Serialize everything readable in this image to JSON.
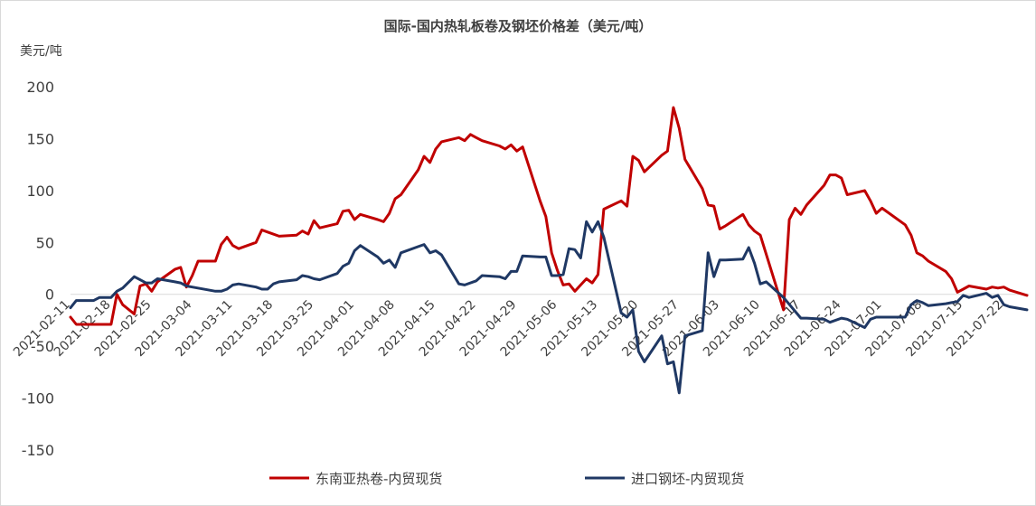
{
  "chart_data": {
    "type": "line",
    "title": "国际-国内热轧板卷及钢坯价格差（美元/吨）",
    "ylabel": "美元/吨",
    "xlabel": "",
    "ylim": [
      -150,
      200
    ],
    "yticks": [
      -150,
      -100,
      -50,
      0,
      50,
      100,
      150,
      200
    ],
    "x_tick_labels": [
      "2021-02-11",
      "2021-02-18",
      "2021-02-25",
      "2021-03-04",
      "2021-03-11",
      "2021-03-18",
      "2021-03-25",
      "2021-04-01",
      "2021-04-08",
      "2021-04-15",
      "2021-04-22",
      "2021-04-29",
      "2021-05-06",
      "2021-05-13",
      "2021-05-20",
      "2021-05-27",
      "2021-06-03",
      "2021-06-10",
      "2021-06-17",
      "2021-06-24",
      "2021-07-01",
      "2021-07-08",
      "2021-07-15",
      "2021-07-22"
    ],
    "x_range": [
      "2021-02-11",
      "2021-07-26"
    ],
    "grid": false,
    "legend_position": "bottom",
    "series": [
      {
        "name": "东南亚热卷-内贸现货",
        "color": "#c00000",
        "points": [
          [
            "2021-02-11",
            -22
          ],
          [
            "2021-02-12",
            -29
          ],
          [
            "2021-02-17",
            -29
          ],
          [
            "2021-02-18",
            -29
          ],
          [
            "2021-02-19",
            0
          ],
          [
            "2021-02-20",
            -10
          ],
          [
            "2021-02-22",
            -19
          ],
          [
            "2021-02-23",
            8
          ],
          [
            "2021-02-24",
            10
          ],
          [
            "2021-02-25",
            3
          ],
          [
            "2021-02-26",
            12
          ],
          [
            "2021-03-01",
            24
          ],
          [
            "2021-03-02",
            26
          ],
          [
            "2021-03-03",
            7
          ],
          [
            "2021-03-04",
            18
          ],
          [
            "2021-03-05",
            32
          ],
          [
            "2021-03-08",
            32
          ],
          [
            "2021-03-09",
            48
          ],
          [
            "2021-03-10",
            55
          ],
          [
            "2021-03-11",
            47
          ],
          [
            "2021-03-12",
            44
          ],
          [
            "2021-03-15",
            50
          ],
          [
            "2021-03-16",
            62
          ],
          [
            "2021-03-17",
            60
          ],
          [
            "2021-03-19",
            56
          ],
          [
            "2021-03-22",
            57
          ],
          [
            "2021-03-23",
            61
          ],
          [
            "2021-03-24",
            58
          ],
          [
            "2021-03-25",
            71
          ],
          [
            "2021-03-26",
            64
          ],
          [
            "2021-03-29",
            68
          ],
          [
            "2021-03-30",
            80
          ],
          [
            "2021-03-31",
            81
          ],
          [
            "2021-04-01",
            72
          ],
          [
            "2021-04-02",
            77
          ],
          [
            "2021-04-05",
            72
          ],
          [
            "2021-04-06",
            70
          ],
          [
            "2021-04-07",
            78
          ],
          [
            "2021-04-08",
            92
          ],
          [
            "2021-04-09",
            96
          ],
          [
            "2021-04-12",
            120
          ],
          [
            "2021-04-13",
            133
          ],
          [
            "2021-04-14",
            127
          ],
          [
            "2021-04-15",
            140
          ],
          [
            "2021-04-16",
            147
          ],
          [
            "2021-04-19",
            151
          ],
          [
            "2021-04-20",
            148
          ],
          [
            "2021-04-21",
            154
          ],
          [
            "2021-04-22",
            151
          ],
          [
            "2021-04-23",
            148
          ],
          [
            "2021-04-26",
            143
          ],
          [
            "2021-04-27",
            140
          ],
          [
            "2021-04-28",
            144
          ],
          [
            "2021-04-29",
            138
          ],
          [
            "2021-04-30",
            142
          ],
          [
            "2021-05-03",
            90
          ],
          [
            "2021-05-04",
            75
          ],
          [
            "2021-05-05",
            40
          ],
          [
            "2021-05-06",
            23
          ],
          [
            "2021-05-07",
            9
          ],
          [
            "2021-05-08",
            10
          ],
          [
            "2021-05-09",
            3
          ],
          [
            "2021-05-10",
            9
          ],
          [
            "2021-05-11",
            15
          ],
          [
            "2021-05-12",
            11
          ],
          [
            "2021-05-13",
            19
          ],
          [
            "2021-05-14",
            82
          ],
          [
            "2021-05-17",
            90
          ],
          [
            "2021-05-18",
            85
          ],
          [
            "2021-05-19",
            133
          ],
          [
            "2021-05-20",
            129
          ],
          [
            "2021-05-21",
            118
          ],
          [
            "2021-05-24",
            134
          ],
          [
            "2021-05-25",
            138
          ],
          [
            "2021-05-26",
            180
          ],
          [
            "2021-05-27",
            160
          ],
          [
            "2021-05-28",
            130
          ],
          [
            "2021-05-31",
            102
          ],
          [
            "2021-06-01",
            86
          ],
          [
            "2021-06-02",
            85
          ],
          [
            "2021-06-03",
            63
          ],
          [
            "2021-06-04",
            66
          ],
          [
            "2021-06-07",
            77
          ],
          [
            "2021-06-08",
            67
          ],
          [
            "2021-06-09",
            61
          ],
          [
            "2021-06-10",
            57
          ],
          [
            "2021-06-14",
            -15
          ],
          [
            "2021-06-15",
            72
          ],
          [
            "2021-06-16",
            83
          ],
          [
            "2021-06-17",
            77
          ],
          [
            "2021-06-18",
            86
          ],
          [
            "2021-06-21",
            105
          ],
          [
            "2021-06-22",
            115
          ],
          [
            "2021-06-23",
            115
          ],
          [
            "2021-06-24",
            112
          ],
          [
            "2021-06-25",
            96
          ],
          [
            "2021-06-28",
            100
          ],
          [
            "2021-06-29",
            90
          ],
          [
            "2021-06-30",
            78
          ],
          [
            "2021-07-01",
            83
          ],
          [
            "2021-07-05",
            67
          ],
          [
            "2021-07-06",
            57
          ],
          [
            "2021-07-07",
            40
          ],
          [
            "2021-07-08",
            37
          ],
          [
            "2021-07-09",
            32
          ],
          [
            "2021-07-12",
            22
          ],
          [
            "2021-07-13",
            15
          ],
          [
            "2021-07-14",
            2
          ],
          [
            "2021-07-15",
            5
          ],
          [
            "2021-07-16",
            8
          ],
          [
            "2021-07-19",
            5
          ],
          [
            "2021-07-20",
            7
          ],
          [
            "2021-07-21",
            6
          ],
          [
            "2021-07-22",
            7
          ],
          [
            "2021-07-23",
            4
          ],
          [
            "2021-07-26",
            -1
          ]
        ]
      },
      {
        "name": "进口钢坯-内贸现货",
        "color": "#1f3864",
        "points": [
          [
            "2021-02-11",
            -13
          ],
          [
            "2021-02-12",
            -6
          ],
          [
            "2021-02-15",
            -6
          ],
          [
            "2021-02-16",
            -3
          ],
          [
            "2021-02-18",
            -3
          ],
          [
            "2021-02-19",
            3
          ],
          [
            "2021-02-20",
            6
          ],
          [
            "2021-02-22",
            17
          ],
          [
            "2021-02-23",
            14
          ],
          [
            "2021-02-24",
            11
          ],
          [
            "2021-02-25",
            11
          ],
          [
            "2021-02-26",
            15
          ],
          [
            "2021-03-01",
            12
          ],
          [
            "2021-03-02",
            11
          ],
          [
            "2021-03-03",
            8
          ],
          [
            "2021-03-04",
            7
          ],
          [
            "2021-03-08",
            3
          ],
          [
            "2021-03-09",
            3
          ],
          [
            "2021-03-10",
            5
          ],
          [
            "2021-03-11",
            9
          ],
          [
            "2021-03-12",
            10
          ],
          [
            "2021-03-15",
            7
          ],
          [
            "2021-03-16",
            5
          ],
          [
            "2021-03-17",
            5
          ],
          [
            "2021-03-18",
            10
          ],
          [
            "2021-03-19",
            12
          ],
          [
            "2021-03-22",
            14
          ],
          [
            "2021-03-23",
            18
          ],
          [
            "2021-03-24",
            17
          ],
          [
            "2021-03-25",
            15
          ],
          [
            "2021-03-26",
            14
          ],
          [
            "2021-03-29",
            20
          ],
          [
            "2021-03-30",
            27
          ],
          [
            "2021-03-31",
            30
          ],
          [
            "2021-04-01",
            42
          ],
          [
            "2021-04-02",
            47
          ],
          [
            "2021-04-05",
            36
          ],
          [
            "2021-04-06",
            30
          ],
          [
            "2021-04-07",
            33
          ],
          [
            "2021-04-08",
            26
          ],
          [
            "2021-04-09",
            40
          ],
          [
            "2021-04-12",
            46
          ],
          [
            "2021-04-13",
            48
          ],
          [
            "2021-04-14",
            40
          ],
          [
            "2021-04-15",
            42
          ],
          [
            "2021-04-16",
            38
          ],
          [
            "2021-04-19",
            10
          ],
          [
            "2021-04-20",
            9
          ],
          [
            "2021-04-22",
            13
          ],
          [
            "2021-04-23",
            18
          ],
          [
            "2021-04-26",
            17
          ],
          [
            "2021-04-27",
            15
          ],
          [
            "2021-04-28",
            22
          ],
          [
            "2021-04-29",
            22
          ],
          [
            "2021-04-30",
            37
          ],
          [
            "2021-05-03",
            36
          ],
          [
            "2021-05-04",
            36
          ],
          [
            "2021-05-05",
            18
          ],
          [
            "2021-05-06",
            18
          ],
          [
            "2021-05-07",
            19
          ],
          [
            "2021-05-08",
            44
          ],
          [
            "2021-05-09",
            43
          ],
          [
            "2021-05-10",
            35
          ],
          [
            "2021-05-11",
            70
          ],
          [
            "2021-05-12",
            60
          ],
          [
            "2021-05-13",
            70
          ],
          [
            "2021-05-14",
            55
          ],
          [
            "2021-05-17",
            -18
          ],
          [
            "2021-05-18",
            -22
          ],
          [
            "2021-05-19",
            -15
          ],
          [
            "2021-05-20",
            -55
          ],
          [
            "2021-05-21",
            -65
          ],
          [
            "2021-05-24",
            -40
          ],
          [
            "2021-05-25",
            -67
          ],
          [
            "2021-05-26",
            -65
          ],
          [
            "2021-05-27",
            -95
          ],
          [
            "2021-05-28",
            -40
          ],
          [
            "2021-05-31",
            -35
          ],
          [
            "2021-06-01",
            40
          ],
          [
            "2021-06-02",
            17
          ],
          [
            "2021-06-03",
            33
          ],
          [
            "2021-06-04",
            33
          ],
          [
            "2021-06-07",
            34
          ],
          [
            "2021-06-08",
            45
          ],
          [
            "2021-06-09",
            30
          ],
          [
            "2021-06-10",
            10
          ],
          [
            "2021-06-11",
            12
          ],
          [
            "2021-06-14",
            -3
          ],
          [
            "2021-06-17",
            -23
          ],
          [
            "2021-06-18",
            -23
          ],
          [
            "2021-06-21",
            -24
          ],
          [
            "2021-06-22",
            -27
          ],
          [
            "2021-06-24",
            -23
          ],
          [
            "2021-06-25",
            -24
          ],
          [
            "2021-06-28",
            -32
          ],
          [
            "2021-06-29",
            -24
          ],
          [
            "2021-06-30",
            -22
          ],
          [
            "2021-07-01",
            -22
          ],
          [
            "2021-07-05",
            -22
          ],
          [
            "2021-07-06",
            -10
          ],
          [
            "2021-07-07",
            -6
          ],
          [
            "2021-07-08",
            -8
          ],
          [
            "2021-07-09",
            -11
          ],
          [
            "2021-07-12",
            -9
          ],
          [
            "2021-07-13",
            -8
          ],
          [
            "2021-07-14",
            -7
          ],
          [
            "2021-07-15",
            -1
          ],
          [
            "2021-07-16",
            -3
          ],
          [
            "2021-07-19",
            1
          ],
          [
            "2021-07-20",
            -3
          ],
          [
            "2021-07-21",
            -1
          ],
          [
            "2021-07-22",
            -10
          ],
          [
            "2021-07-23",
            -12
          ],
          [
            "2021-07-26",
            -15
          ]
        ]
      }
    ]
  }
}
